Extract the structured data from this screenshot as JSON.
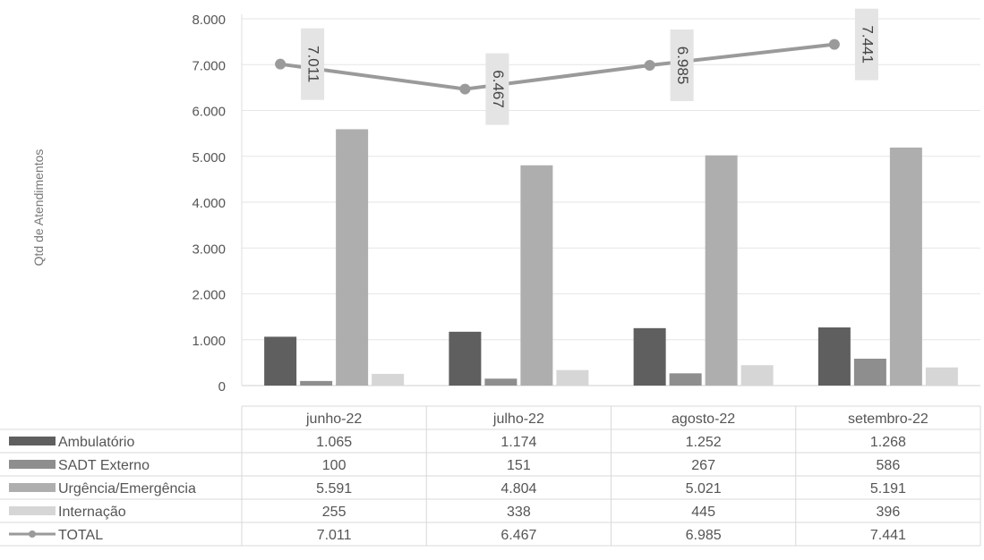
{
  "chart_data": {
    "type": "bar",
    "ylabel": "Qtd de Atendimentos",
    "ylim": [
      0,
      8000
    ],
    "yticks": [
      "0",
      "1.000",
      "2.000",
      "3.000",
      "4.000",
      "5.000",
      "6.000",
      "7.000",
      "8.000"
    ],
    "grid": true,
    "legend_placement": "left of data table",
    "categories": [
      "junho-22",
      "julho-22",
      "agosto-22",
      "setembro-22"
    ],
    "series": [
      {
        "name": "Ambulatório",
        "kind": "bar",
        "color": "#5f5f5f",
        "values": [
          1065,
          1174,
          1252,
          1268
        ],
        "labels": [
          "1.065",
          "1.174",
          "1.252",
          "1.268"
        ]
      },
      {
        "name": "SADT Externo",
        "kind": "bar",
        "color": "#8e8e8e",
        "values": [
          100,
          151,
          267,
          586
        ],
        "labels": [
          "100",
          "151",
          "267",
          "586"
        ]
      },
      {
        "name": "Urgência/Emergência",
        "kind": "bar",
        "color": "#aeaeae",
        "values": [
          5591,
          4804,
          5021,
          5191
        ],
        "labels": [
          "5.591",
          "4.804",
          "5.021",
          "5.191"
        ]
      },
      {
        "name": "Internação",
        "kind": "bar",
        "color": "#d6d6d6",
        "values": [
          255,
          338,
          445,
          396
        ],
        "labels": [
          "255",
          "338",
          "445",
          "396"
        ]
      },
      {
        "name": "TOTAL",
        "kind": "line",
        "color": "#9a9a9a",
        "values": [
          7011,
          6467,
          6985,
          7441
        ],
        "labels": [
          "7.011",
          "6.467",
          "6.985",
          "7.441"
        ]
      }
    ]
  }
}
